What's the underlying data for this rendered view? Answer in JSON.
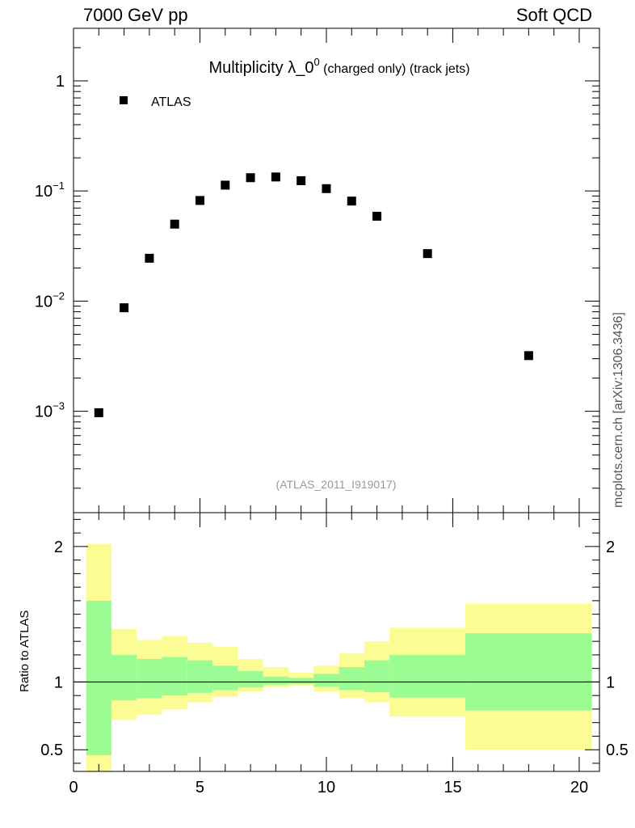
{
  "header": {
    "left": "7000 GeV pp",
    "right": "Soft QCD"
  },
  "side_label": "mcplots.cern.ch [arXiv:1306.3436]",
  "chart_data": [
    {
      "type": "scatter",
      "title_main": "Multiplicity λ_0",
      "title_sup": "0",
      "title_suffix": " (charged only) (track jets)",
      "legend": {
        "entries": [
          "ATLAS"
        ],
        "placement": "top-left"
      },
      "watermark": "(ATLAS_2011_I919017)",
      "yscale": "log",
      "xlim": [
        0,
        20.8
      ],
      "ylim": [
        0.00012,
        3
      ],
      "yticks": [
        {
          "label": "1",
          "value": 1
        },
        {
          "label": "10",
          "sup": "−1",
          "value": 0.1
        },
        {
          "label": "10",
          "sup": "−2",
          "value": 0.01
        },
        {
          "label": "10",
          "sup": "−3",
          "value": 0.001
        }
      ],
      "series": [
        {
          "name": "ATLAS",
          "x": [
            1,
            2,
            3,
            4,
            5,
            6,
            7,
            8,
            9,
            10,
            11,
            12,
            14,
            18
          ],
          "y": [
            0.00097,
            0.0087,
            0.0245,
            0.05,
            0.082,
            0.113,
            0.132,
            0.134,
            0.124,
            0.105,
            0.081,
            0.059,
            0.027,
            0.0032
          ]
        }
      ]
    },
    {
      "type": "area",
      "ylabel": "Ratio to ATLAS",
      "xlim": [
        0,
        20.8
      ],
      "ylim": [
        0.34,
        2.25
      ],
      "xticks": [
        "0",
        "5",
        "10",
        "15",
        "20"
      ],
      "yticks": [
        {
          "label": "0.5",
          "value": 0.5
        },
        {
          "label": "1",
          "value": 1
        },
        {
          "label": "2",
          "value": 2
        }
      ],
      "reference_line": 1,
      "bands": [
        {
          "x0": 0.5,
          "x1": 1.5,
          "green": [
            0.46,
            1.6
          ],
          "yellow": [
            0.34,
            2.02
          ]
        },
        {
          "x0": 1.5,
          "x1": 2.5,
          "green": [
            0.865,
            1.2
          ],
          "yellow": [
            0.72,
            1.39
          ]
        },
        {
          "x0": 2.5,
          "x1": 3.5,
          "green": [
            0.88,
            1.17
          ],
          "yellow": [
            0.76,
            1.31
          ]
        },
        {
          "x0": 3.5,
          "x1": 4.5,
          "green": [
            0.9,
            1.185
          ],
          "yellow": [
            0.8,
            1.34
          ]
        },
        {
          "x0": 4.5,
          "x1": 5.5,
          "green": [
            0.92,
            1.16
          ],
          "yellow": [
            0.85,
            1.29
          ]
        },
        {
          "x0": 5.5,
          "x1": 6.5,
          "green": [
            0.94,
            1.12
          ],
          "yellow": [
            0.89,
            1.26
          ]
        },
        {
          "x0": 6.5,
          "x1": 7.5,
          "green": [
            0.96,
            1.08
          ],
          "yellow": [
            0.93,
            1.17
          ]
        },
        {
          "x0": 7.5,
          "x1": 8.5,
          "green": [
            0.98,
            1.04
          ],
          "yellow": [
            0.96,
            1.11
          ]
        },
        {
          "x0": 8.5,
          "x1": 9.5,
          "green": [
            0.985,
            1.03
          ],
          "yellow": [
            0.97,
            1.07
          ]
        },
        {
          "x0": 9.5,
          "x1": 10.5,
          "green": [
            0.965,
            1.06
          ],
          "yellow": [
            0.93,
            1.12
          ]
        },
        {
          "x0": 10.5,
          "x1": 11.5,
          "green": [
            0.94,
            1.11
          ],
          "yellow": [
            0.88,
            1.21
          ]
        },
        {
          "x0": 11.5,
          "x1": 12.5,
          "green": [
            0.925,
            1.16
          ],
          "yellow": [
            0.85,
            1.3
          ]
        },
        {
          "x0": 12.5,
          "x1": 15.5,
          "green": [
            0.885,
            1.2
          ],
          "yellow": [
            0.745,
            1.4
          ]
        },
        {
          "x0": 15.5,
          "x1": 20.5,
          "green": [
            0.79,
            1.36
          ],
          "yellow": [
            0.5,
            1.58
          ]
        }
      ]
    }
  ],
  "colors": {
    "green": "#9cfc94",
    "yellow": "#fcfc94",
    "marker": "#000000",
    "watermark": "#999999"
  }
}
